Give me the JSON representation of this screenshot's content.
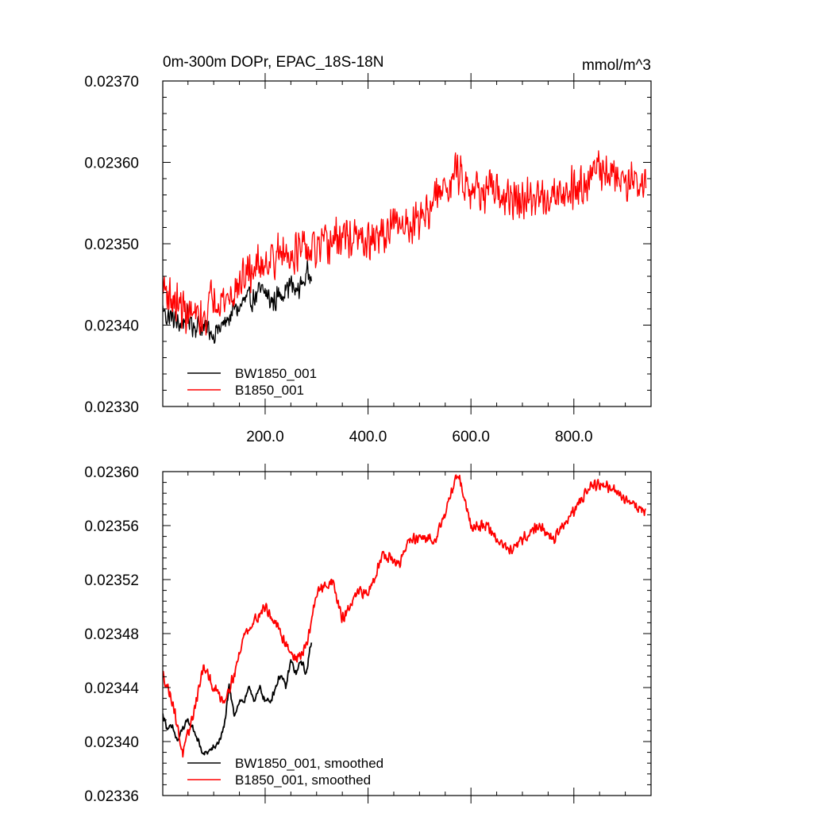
{
  "figure": {
    "title_left": "0m-300m DOPr, EPAC_18S-18N",
    "title_right": "mmol/m^3"
  },
  "chart_data": [
    {
      "type": "line",
      "title": "0m-300m DOPr, EPAC_18S-18N",
      "units": "mmol/m^3",
      "xlim": [
        1,
        950
      ],
      "ylim": [
        0.0233,
        0.0237
      ],
      "x_ticks": [
        200,
        400,
        600,
        800
      ],
      "x_tick_labels": [
        "200.0",
        "400.0",
        "600.0",
        "800.0"
      ],
      "y_ticks": [
        0.0233,
        0.0234,
        0.0235,
        0.0236,
        0.0237
      ],
      "y_tick_labels": [
        "0.02330",
        "0.02340",
        "0.02350",
        "0.02360",
        "0.02370"
      ],
      "legend_position": "bottom-left",
      "color_hex": [
        "#000000",
        "#ff0000"
      ],
      "series": [
        {
          "name": "BW1850_001",
          "color": "#000000",
          "noise": 1.8e-05,
          "x": [
            1,
            10,
            20,
            30,
            40,
            50,
            60,
            70,
            80,
            90,
            100,
            110,
            120,
            130,
            140,
            150,
            160,
            170,
            180,
            190,
            200,
            210,
            220,
            230,
            240,
            250,
            260,
            270,
            280,
            290
          ],
          "y": [
            0.02342,
            0.02341,
            0.02341,
            0.0234,
            0.023405,
            0.02341,
            0.0234,
            0.0234,
            0.023395,
            0.023395,
            0.02339,
            0.023395,
            0.0234,
            0.02341,
            0.02342,
            0.02342,
            0.02343,
            0.02343,
            0.023435,
            0.02344,
            0.02344,
            0.02343,
            0.02343,
            0.02344,
            0.023445,
            0.02345,
            0.02344,
            0.02345,
            0.02346,
            0.02347
          ]
        },
        {
          "name": "B1850_001",
          "color": "#ff0000",
          "noise": 3e-05,
          "x": [
            1,
            20,
            40,
            60,
            80,
            100,
            120,
            140,
            160,
            200,
            250,
            300,
            350,
            400,
            450,
            500,
            550,
            575,
            600,
            650,
            700,
            750,
            800,
            850,
            900,
            940
          ],
          "y": [
            0.02345,
            0.02343,
            0.02342,
            0.02341,
            0.023405,
            0.02344,
            0.02343,
            0.02344,
            0.02346,
            0.02348,
            0.02349,
            0.02349,
            0.02351,
            0.0235,
            0.02352,
            0.02353,
            0.02357,
            0.02359,
            0.02357,
            0.02356,
            0.02355,
            0.02356,
            0.02357,
            0.02359,
            0.02358,
            0.02357
          ]
        }
      ]
    },
    {
      "type": "line",
      "title": "",
      "xlim": [
        1,
        950
      ],
      "ylim": [
        0.02336,
        0.0236
      ],
      "x_ticks": [
        200,
        400,
        600,
        800
      ],
      "x_tick_labels": [
        "",
        "",
        "",
        ""
      ],
      "y_ticks": [
        0.02336,
        0.0234,
        0.02344,
        0.02348,
        0.02352,
        0.02356,
        0.0236
      ],
      "y_tick_labels": [
        "0.02336",
        "0.02340",
        "0.02344",
        "0.02348",
        "0.02352",
        "0.02356",
        "0.02360"
      ],
      "legend_position": "bottom-left",
      "color_hex": [
        "#000000",
        "#ff0000"
      ],
      "series": [
        {
          "name": "BW1850_001, smoothed",
          "color": "#000000",
          "noise": 3e-06,
          "x": [
            1,
            10,
            20,
            30,
            40,
            50,
            60,
            70,
            80,
            90,
            100,
            110,
            120,
            130,
            140,
            150,
            160,
            170,
            180,
            190,
            200,
            210,
            220,
            230,
            240,
            250,
            260,
            270,
            280,
            290
          ],
          "y": [
            0.02342,
            0.02341,
            0.02341,
            0.0234,
            0.02341,
            0.023415,
            0.02341,
            0.0234,
            0.02339,
            0.023393,
            0.023395,
            0.0234,
            0.02341,
            0.02344,
            0.02342,
            0.02343,
            0.02343,
            0.02344,
            0.02343,
            0.02344,
            0.02343,
            0.02343,
            0.02344,
            0.02345,
            0.02344,
            0.02346,
            0.02345,
            0.02346,
            0.02345,
            0.023475
          ]
        },
        {
          "name": "B1850_001, smoothed",
          "color": "#ff0000",
          "noise": 5e-06,
          "x": [
            1,
            20,
            40,
            60,
            80,
            100,
            120,
            140,
            160,
            180,
            200,
            230,
            260,
            280,
            300,
            330,
            350,
            380,
            400,
            430,
            460,
            480,
            500,
            530,
            550,
            575,
            600,
            630,
            650,
            680,
            700,
            730,
            760,
            800,
            830,
            860,
            900,
            940
          ],
          "y": [
            0.02345,
            0.02343,
            0.02339,
            0.02342,
            0.023455,
            0.02344,
            0.02343,
            0.02345,
            0.02348,
            0.02349,
            0.0235,
            0.02348,
            0.02346,
            0.02347,
            0.02351,
            0.02352,
            0.02349,
            0.02351,
            0.02351,
            0.02354,
            0.02353,
            0.02355,
            0.02355,
            0.02355,
            0.02357,
            0.0236,
            0.02356,
            0.02356,
            0.02355,
            0.02354,
            0.02355,
            0.02356,
            0.02355,
            0.02357,
            0.02359,
            0.02359,
            0.02358,
            0.02357
          ]
        }
      ]
    }
  ]
}
